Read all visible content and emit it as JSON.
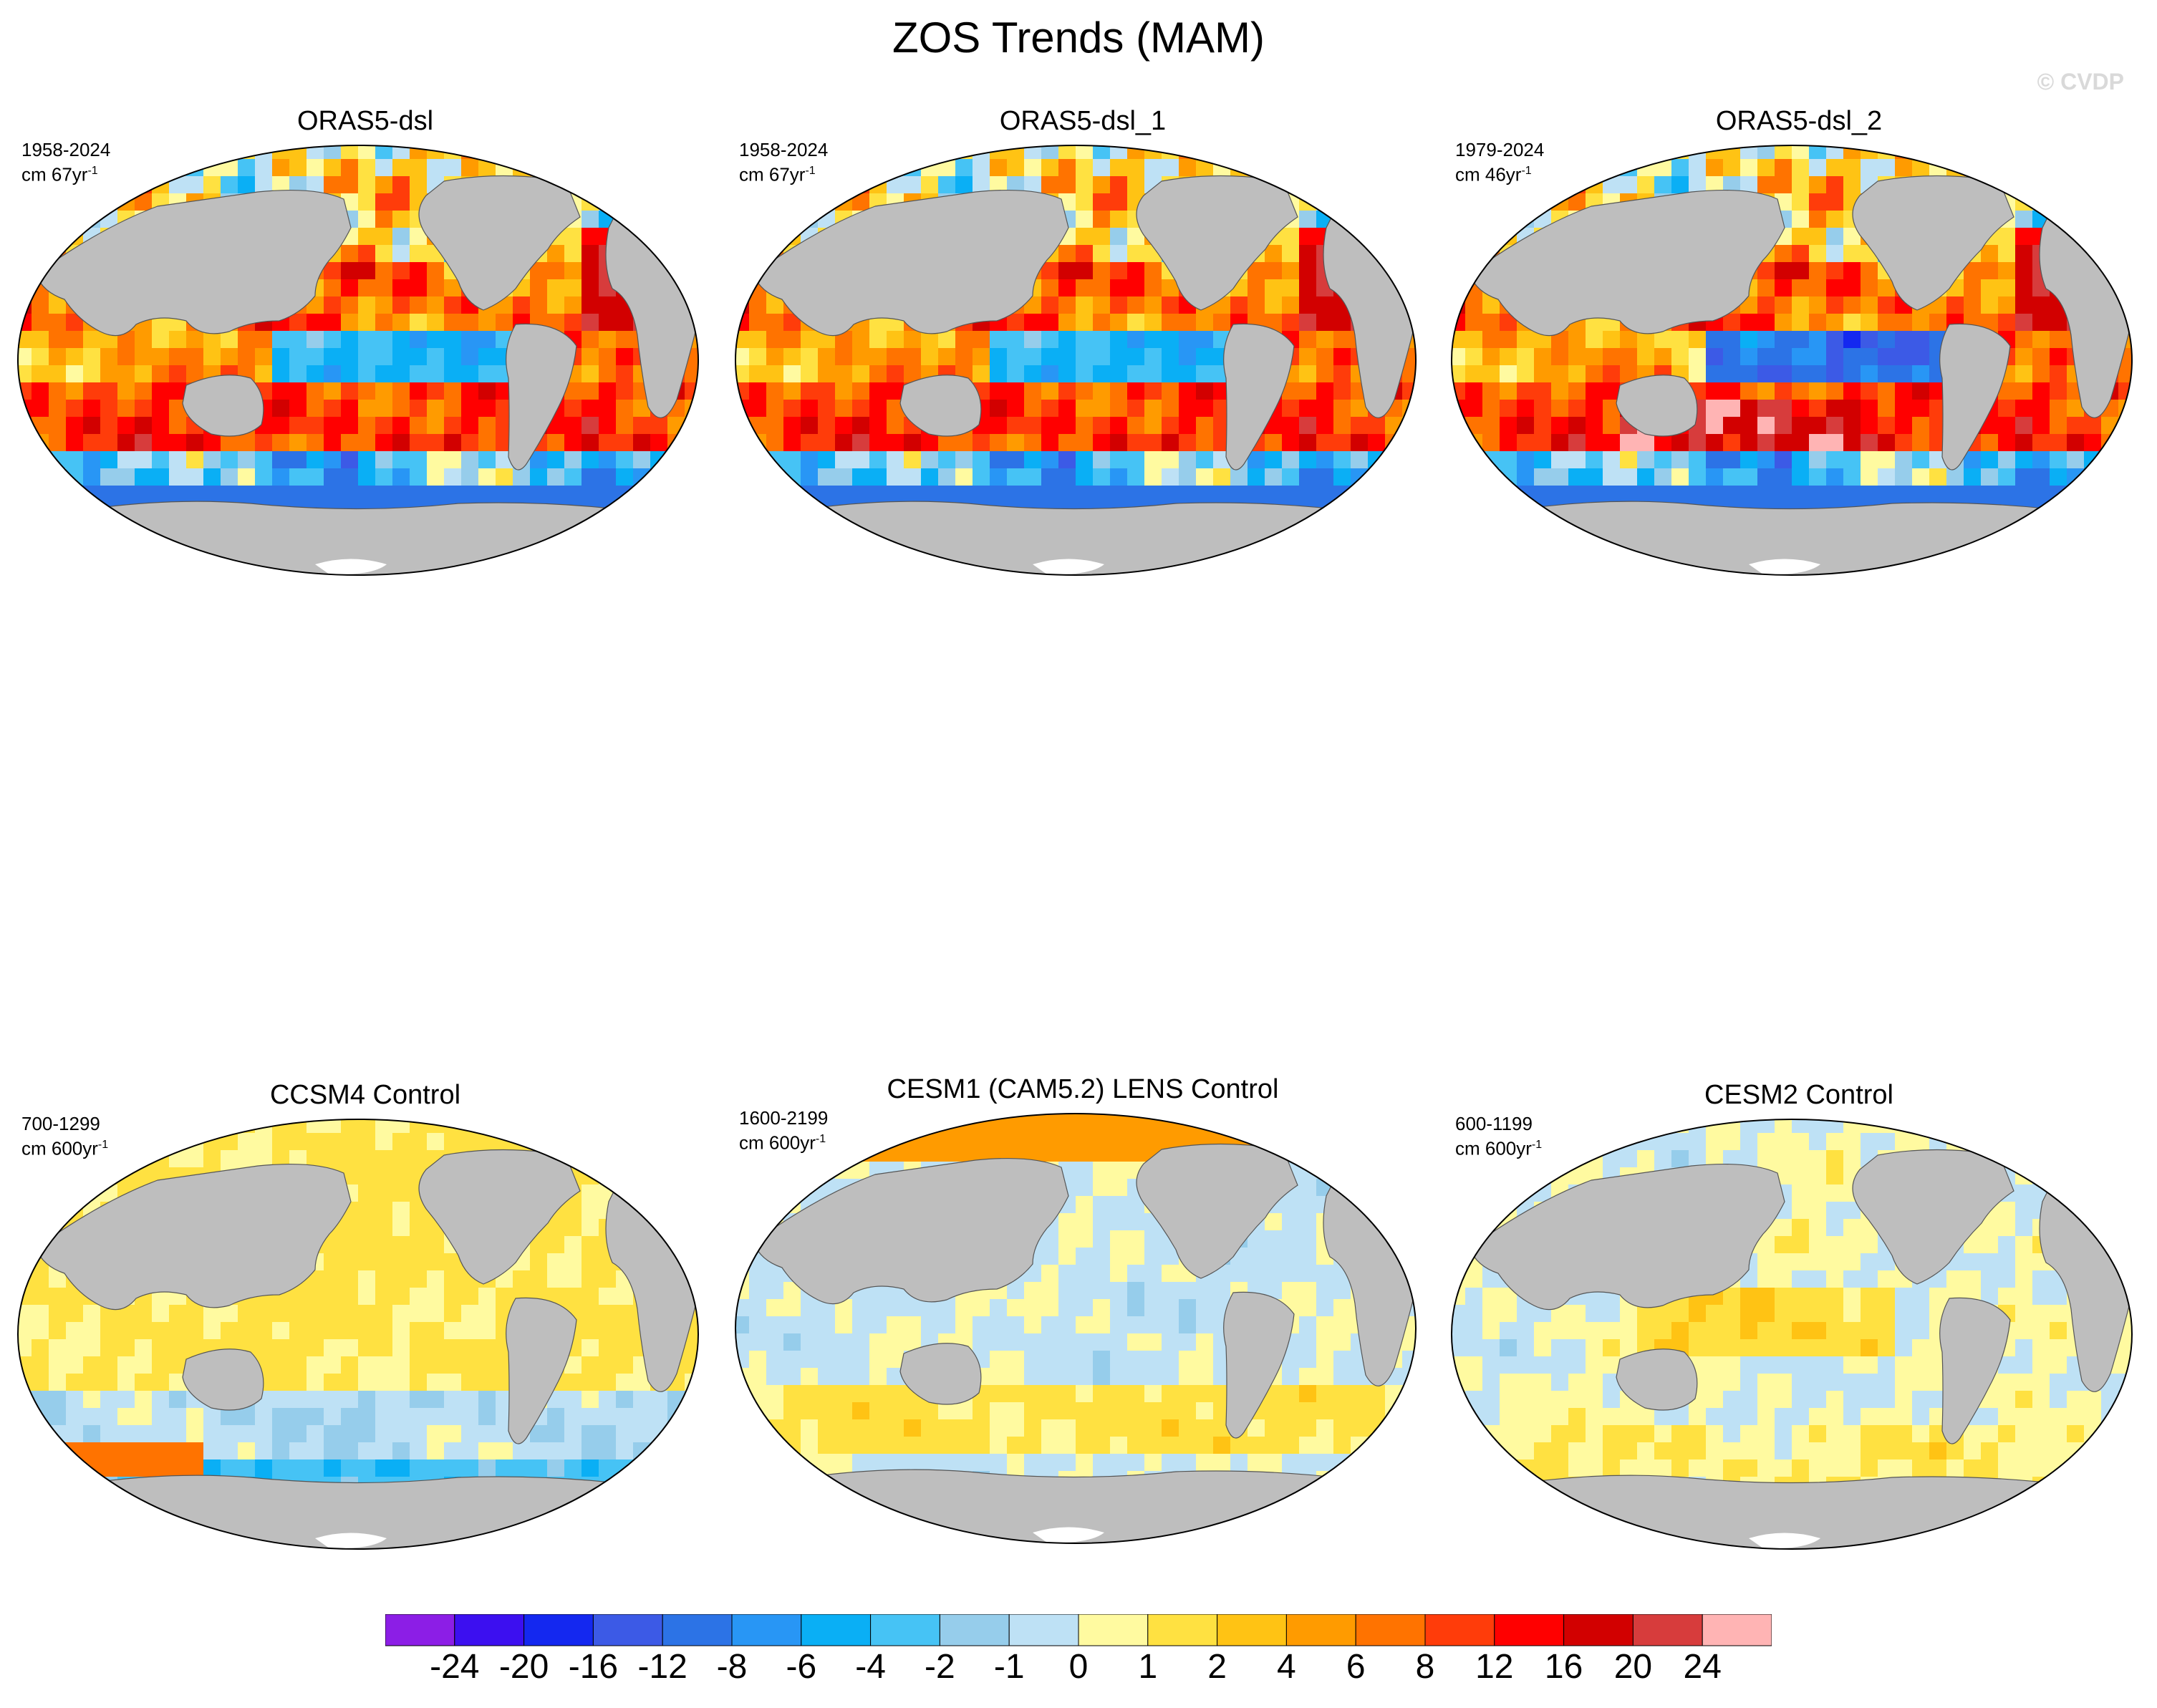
{
  "title": "ZOS Trends (MAM)",
  "watermark": "© CVDP",
  "panels": [
    {
      "title": "ORAS5-dsl",
      "period": "1958-2024",
      "units_prefix": "cm 67yr",
      "units_sup": "-1",
      "pattern": "oras"
    },
    {
      "title": "ORAS5-dsl_1",
      "period": "1958-2024",
      "units_prefix": "cm 67yr",
      "units_sup": "-1",
      "pattern": "oras"
    },
    {
      "title": "ORAS5-dsl_2",
      "period": "1979-2024",
      "units_prefix": "cm 46yr",
      "units_sup": "-1",
      "pattern": "oras2"
    },
    {
      "title": "CCSM4 Control",
      "period": "700-1299",
      "units_prefix": "cm 600yr",
      "units_sup": "-1",
      "pattern": "ccsm4"
    },
    {
      "title": "CESM1 (CAM5.2) LENS Control",
      "period": "1600-2199",
      "units_prefix": "cm 600yr",
      "units_sup": "-1",
      "pattern": "cesm1"
    },
    {
      "title": "CESM2 Control",
      "period": "600-1199",
      "units_prefix": "cm 600yr",
      "units_sup": "-1",
      "pattern": "cesm2"
    }
  ],
  "colorbar": {
    "labels": [
      "-24",
      "-20",
      "-16",
      "-12",
      "-8",
      "-6",
      "-4",
      "-2",
      "-1",
      "0",
      "1",
      "2",
      "4",
      "6",
      "8",
      "12",
      "16",
      "20",
      "24"
    ],
    "colors": [
      "#8c1ee6",
      "#3c0ff0",
      "#1428f0",
      "#3c5ae6",
      "#2c73e6",
      "#2896f5",
      "#0aaff5",
      "#46c3f5",
      "#96cdeb",
      "#bee1f5",
      "#fffaa0",
      "#ffe141",
      "#ffc314",
      "#ff9b00",
      "#ff7300",
      "#ff3c0a",
      "#ff0000",
      "#d20000",
      "#d73c3c",
      "#ffb4b4"
    ]
  },
  "colors": {
    "land": "#bebebe",
    "land_edge": "#555555",
    "ice": "#ffffff"
  }
}
